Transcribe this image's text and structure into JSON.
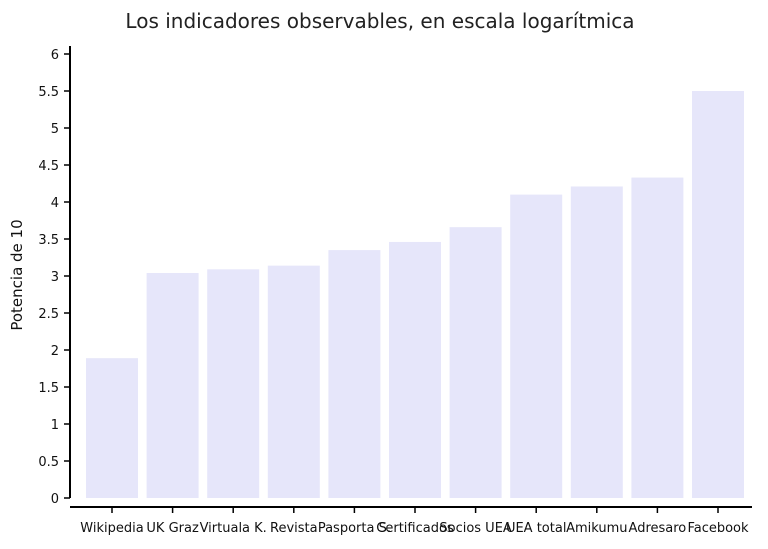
{
  "chart_data": {
    "type": "bar",
    "title": "Los indicadores observables, en escala logarítmica",
    "xlabel": "",
    "ylabel": "Potencia de 10",
    "ylim": [
      0,
      6
    ],
    "yticks": [
      "0",
      "0.5",
      "1",
      "1.5",
      "2",
      "2.5",
      "3",
      "3.5",
      "4",
      "4.5",
      "5",
      "5.5",
      "6"
    ],
    "categories": [
      "Wikipedia",
      "UK Graz",
      "Virtuala K.",
      "Revista",
      "Pasporta S.",
      "Certificados",
      "Socios UEA",
      "UEA total",
      "Amikumu",
      "Adresaro",
      "Facebook"
    ],
    "values": [
      1.89,
      3.04,
      3.09,
      3.14,
      3.35,
      3.46,
      3.66,
      4.1,
      4.21,
      4.33,
      5.5
    ],
    "grid": false,
    "legend": "none"
  },
  "colors": {
    "bar": "#e6e6fa",
    "axis": "#000000"
  }
}
